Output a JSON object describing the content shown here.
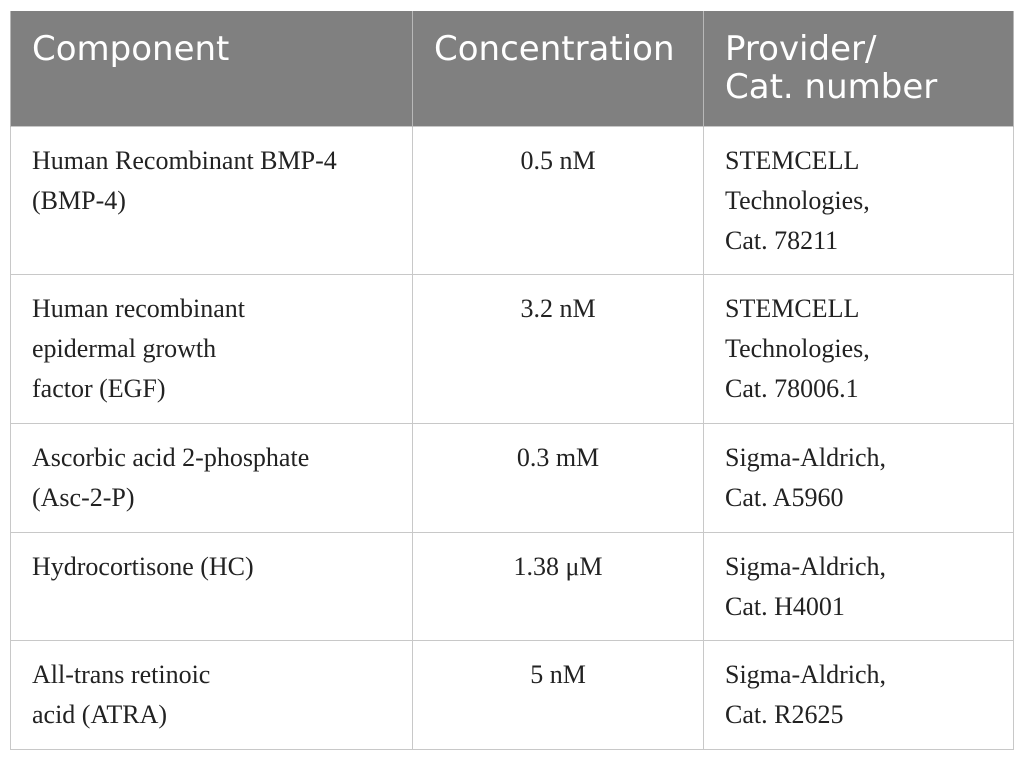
{
  "table": {
    "headers": {
      "component": "Component",
      "concentration": "Concentration",
      "provider_line1": "Provider/",
      "provider_line2": "Cat. number"
    },
    "rows": [
      {
        "component": [
          "Human Recombinant BMP-4",
          "(BMP-4)"
        ],
        "concentration": "0.5 nM",
        "provider": [
          "STEMCELL",
          "Technologies,",
          "Cat. 78211"
        ]
      },
      {
        "component": [
          "Human recombinant",
          "epidermal growth",
          "factor (EGF)"
        ],
        "concentration": "3.2 nM",
        "provider": [
          "STEMCELL",
          "Technologies,",
          "Cat. 78006.1"
        ]
      },
      {
        "component": [
          "Ascorbic acid 2-phosphate",
          "(Asc-2-P)"
        ],
        "concentration": "0.3 mM",
        "provider": [
          "Sigma-Aldrich,",
          "Cat. A5960"
        ]
      },
      {
        "component": [
          "Hydrocortisone (HC)"
        ],
        "concentration": "1.38 μM",
        "provider": [
          "Sigma-Aldrich,",
          "Cat. H4001"
        ]
      },
      {
        "component": [
          "All-trans retinoic",
          "acid (ATRA)"
        ],
        "concentration": "5 nM",
        "provider": [
          "Sigma-Aldrich,",
          "Cat. R2625"
        ]
      }
    ]
  }
}
